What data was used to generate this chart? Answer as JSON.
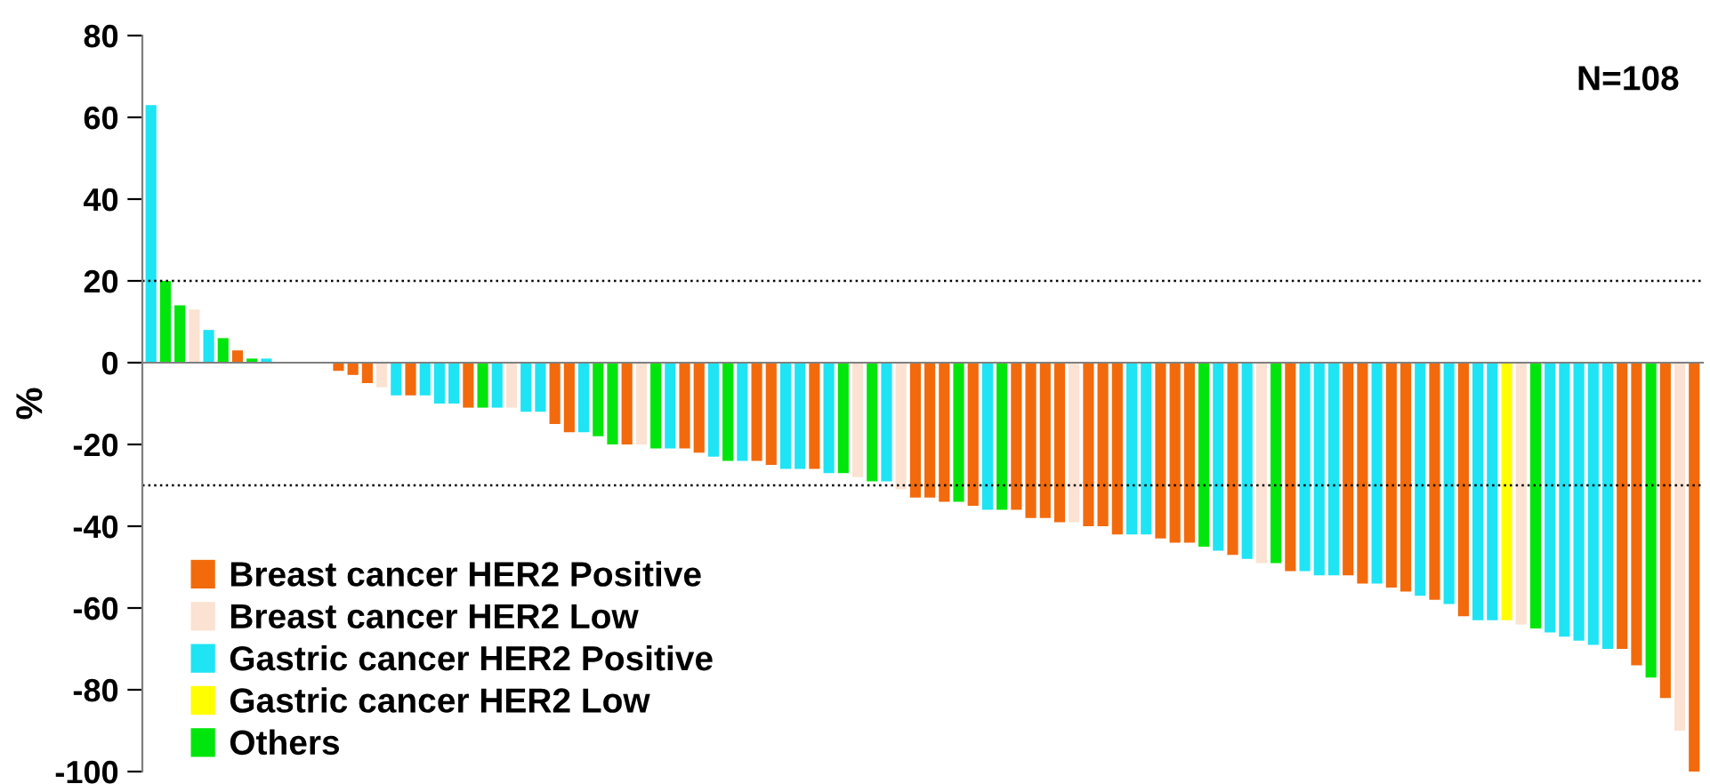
{
  "chart_data": {
    "type": "bar",
    "ylabel": "%",
    "annotations": [
      "N=108"
    ],
    "categories": [
      null,
      null,
      null,
      null,
      null,
      null,
      null,
      null,
      null,
      null,
      null,
      null,
      null,
      null,
      null,
      null,
      null,
      null,
      null,
      null,
      null,
      null,
      null,
      null,
      null,
      null,
      null,
      null,
      null,
      null,
      null,
      null,
      null,
      null,
      null,
      null,
      null,
      null,
      null,
      null,
      null,
      null,
      null,
      null,
      null,
      null,
      null,
      null,
      null,
      null,
      null,
      null,
      null,
      null,
      null,
      null,
      null,
      null,
      null,
      null,
      null,
      null,
      null,
      null,
      null,
      null,
      null,
      null,
      null,
      null,
      null,
      null,
      null,
      null,
      null,
      null,
      null,
      null,
      null,
      null,
      null,
      null,
      null,
      null,
      null,
      null,
      null,
      null,
      null,
      null,
      null,
      null,
      null,
      null,
      null,
      null,
      null,
      null,
      null,
      null,
      null,
      null,
      null,
      null,
      null,
      null,
      null,
      null
    ],
    "series": [
      {
        "name": "Breast cancer HER2 Positive",
        "color": "#f26a0c",
        "values": [
          null,
          null,
          null,
          null,
          null,
          null,
          3,
          null,
          null,
          null,
          null,
          null,
          null,
          -2,
          -3,
          -5,
          null,
          null,
          -8,
          null,
          null,
          null,
          -11,
          null,
          null,
          null,
          null,
          null,
          -15,
          -17,
          null,
          null,
          null,
          -20,
          null,
          null,
          null,
          -21,
          -22,
          null,
          null,
          null,
          -24,
          -25,
          null,
          null,
          -26,
          null,
          null,
          null,
          null,
          null,
          null,
          -33,
          -33,
          -34,
          null,
          -35,
          null,
          null,
          -36,
          -38,
          -38,
          -39,
          null,
          -40,
          -40,
          -42,
          null,
          null,
          -43,
          -44,
          -44,
          null,
          null,
          -47,
          null,
          null,
          null,
          -51,
          null,
          null,
          null,
          -52,
          -54,
          null,
          -55,
          -56,
          null,
          -58,
          null,
          -62,
          null,
          null,
          null,
          null,
          null,
          null,
          null,
          null,
          null,
          null,
          -70,
          -74,
          null,
          -82,
          null,
          -100
        ]
      },
      {
        "name": "Breast cancer HER2 Low",
        "color": "#fbe2d2",
        "values": [
          null,
          null,
          null,
          13,
          null,
          null,
          null,
          null,
          null,
          null,
          null,
          null,
          null,
          null,
          null,
          null,
          -6,
          null,
          null,
          null,
          null,
          null,
          null,
          null,
          null,
          -11,
          null,
          null,
          null,
          null,
          null,
          null,
          null,
          null,
          -20,
          null,
          null,
          null,
          null,
          null,
          null,
          null,
          null,
          null,
          null,
          null,
          null,
          null,
          null,
          -28,
          null,
          null,
          -31,
          null,
          null,
          null,
          null,
          null,
          null,
          null,
          null,
          null,
          null,
          null,
          -39,
          null,
          null,
          null,
          null,
          null,
          null,
          null,
          null,
          null,
          null,
          null,
          null,
          -49,
          null,
          null,
          null,
          null,
          null,
          null,
          null,
          null,
          null,
          null,
          null,
          null,
          null,
          null,
          null,
          null,
          null,
          -64,
          null,
          null,
          null,
          null,
          null,
          null,
          null,
          null,
          null,
          null,
          -90,
          null
        ]
      },
      {
        "name": "Gastric cancer HER2 Positive",
        "color": "#1ee4f4",
        "values": [
          63,
          null,
          null,
          null,
          8,
          null,
          null,
          null,
          1,
          null,
          null,
          null,
          null,
          null,
          null,
          null,
          null,
          -8,
          null,
          -8,
          -10,
          -10,
          null,
          null,
          -11,
          null,
          -12,
          -12,
          null,
          null,
          -17,
          null,
          null,
          null,
          null,
          null,
          -21,
          null,
          null,
          -23,
          null,
          -24,
          null,
          null,
          -26,
          -26,
          null,
          -27,
          null,
          null,
          null,
          -29,
          null,
          null,
          null,
          null,
          null,
          null,
          -36,
          null,
          null,
          null,
          null,
          null,
          null,
          null,
          null,
          null,
          -42,
          -42,
          null,
          null,
          null,
          null,
          -46,
          null,
          -48,
          null,
          null,
          null,
          -51,
          -52,
          -52,
          null,
          null,
          -54,
          null,
          null,
          -57,
          null,
          -59,
          null,
          -63,
          -63,
          null,
          null,
          null,
          -66,
          -67,
          -68,
          -69,
          -70,
          null,
          null,
          null,
          null,
          null,
          null
        ]
      },
      {
        "name": "Gastric cancer HER2 Low",
        "color": "#ffff00",
        "values": [
          null,
          null,
          null,
          null,
          null,
          null,
          null,
          null,
          null,
          null,
          null,
          null,
          null,
          null,
          null,
          null,
          null,
          null,
          null,
          null,
          null,
          null,
          null,
          null,
          null,
          null,
          null,
          null,
          null,
          null,
          null,
          null,
          null,
          null,
          null,
          null,
          null,
          null,
          null,
          null,
          null,
          null,
          null,
          null,
          null,
          null,
          null,
          null,
          null,
          null,
          null,
          null,
          null,
          null,
          null,
          null,
          null,
          null,
          null,
          null,
          null,
          null,
          null,
          null,
          null,
          null,
          null,
          null,
          null,
          null,
          null,
          null,
          null,
          null,
          null,
          null,
          null,
          null,
          null,
          null,
          null,
          null,
          null,
          null,
          null,
          null,
          null,
          null,
          null,
          null,
          null,
          null,
          null,
          null,
          -63,
          null,
          null,
          null,
          null,
          null,
          null,
          null,
          null,
          null,
          null,
          null,
          null,
          null
        ]
      },
      {
        "name": "Others",
        "color": "#00e60c",
        "values": [
          null,
          20,
          14,
          null,
          null,
          6,
          null,
          1,
          null,
          null,
          null,
          null,
          null,
          null,
          null,
          null,
          null,
          null,
          null,
          null,
          null,
          null,
          null,
          -11,
          null,
          null,
          null,
          null,
          null,
          null,
          null,
          -18,
          -20,
          null,
          null,
          -21,
          null,
          null,
          null,
          null,
          -24,
          null,
          null,
          null,
          null,
          null,
          null,
          null,
          -27,
          null,
          -29,
          null,
          null,
          null,
          null,
          null,
          -34,
          null,
          null,
          -36,
          null,
          null,
          null,
          null,
          null,
          null,
          null,
          null,
          null,
          null,
          null,
          null,
          null,
          -45,
          null,
          null,
          null,
          null,
          -49,
          null,
          null,
          null,
          null,
          null,
          null,
          null,
          null,
          null,
          null,
          null,
          null,
          null,
          null,
          null,
          null,
          null,
          -65,
          null,
          null,
          null,
          null,
          null,
          null,
          null,
          -77,
          null,
          null,
          null
        ]
      }
    ],
    "ylim": [
      -100,
      80
    ],
    "yticks": [
      -100,
      -80,
      -60,
      -40,
      -20,
      0,
      20,
      40,
      60,
      80
    ],
    "ref_lines": [
      {
        "axis": "y",
        "value": 20,
        "color": "#000000",
        "line_style": "dotted"
      },
      {
        "axis": "y",
        "value": -30,
        "color": "#000000",
        "line_style": "dotted"
      }
    ],
    "legend": "bottom left",
    "grid": false,
    "tick_labels": "y"
  }
}
